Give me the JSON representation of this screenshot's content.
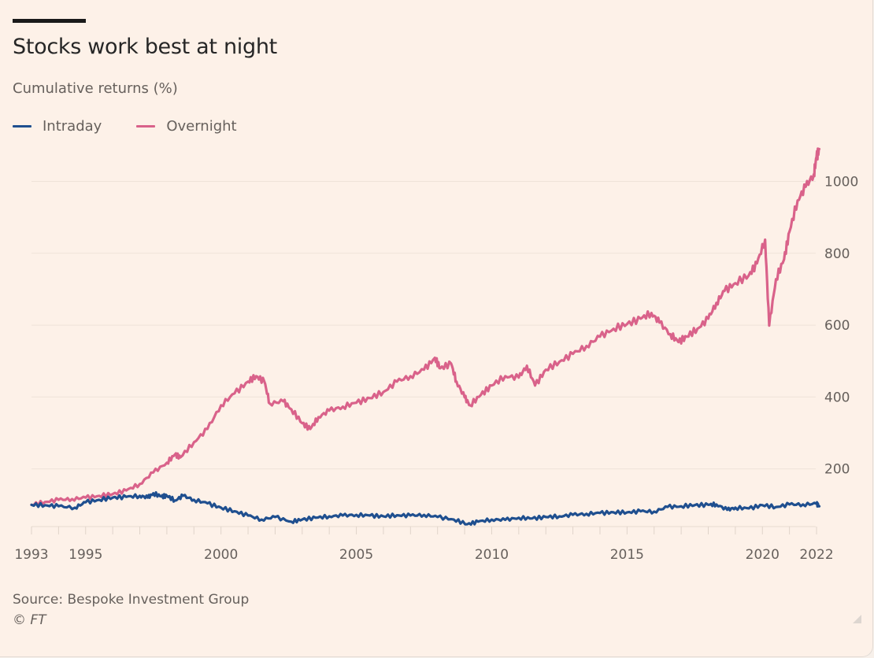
{
  "header": {
    "title": "Stocks work best at night",
    "subtitle": "Cumulative returns (%)"
  },
  "footer": {
    "source": "Source: Bespoke Investment Group",
    "copyright": "© FT"
  },
  "colors": {
    "background": "#fdf1e8",
    "intraday": "#1f4f8f",
    "overnight": "#d9628a",
    "gridline": "#efe3d9",
    "text": "#66605c"
  },
  "chart_data": {
    "type": "line",
    "title": "Stocks work best at night",
    "subtitle": "Cumulative returns (%)",
    "xlabel": "",
    "ylabel": "Cumulative returns (%)",
    "xlim": [
      1993,
      2022.1
    ],
    "ylim": [
      40,
      1100
    ],
    "x_ticks": [
      1993,
      1995,
      2000,
      2005,
      2010,
      2015,
      2020,
      2022
    ],
    "x_tick_labels": [
      "1993",
      "1995",
      "2000",
      "2005",
      "2010",
      "2015",
      "2020",
      "2022"
    ],
    "x_minor_ticks_every_year": true,
    "y_ticks": [
      200,
      400,
      600,
      800,
      1000
    ],
    "y_tick_labels": [
      "200",
      "400",
      "600",
      "800",
      "1000"
    ],
    "y_axis_side": "right",
    "grid": "horizontal",
    "legend": {
      "position": "top-left",
      "entries": [
        "Intraday",
        "Overnight"
      ]
    },
    "source": "Source: Bespoke Investment Group",
    "series": [
      {
        "name": "Intraday",
        "color": "#1f4f8f",
        "points": [
          [
            1993.0,
            100
          ],
          [
            1993.5,
            99
          ],
          [
            1994.0,
            96
          ],
          [
            1994.6,
            92
          ],
          [
            1995.0,
            107
          ],
          [
            1995.5,
            114
          ],
          [
            1996.0,
            120
          ],
          [
            1996.5,
            122
          ],
          [
            1997.0,
            125
          ],
          [
            1997.3,
            120
          ],
          [
            1997.5,
            132
          ],
          [
            1997.8,
            123
          ],
          [
            1998.0,
            125
          ],
          [
            1998.3,
            112
          ],
          [
            1998.6,
            125
          ],
          [
            1999.0,
            114
          ],
          [
            1999.5,
            104
          ],
          [
            2000.0,
            92
          ],
          [
            2000.5,
            82
          ],
          [
            2001.0,
            70
          ],
          [
            2001.5,
            59
          ],
          [
            2002.0,
            66
          ],
          [
            2002.6,
            53
          ],
          [
            2003.0,
            59
          ],
          [
            2003.5,
            64
          ],
          [
            2004.0,
            68
          ],
          [
            2004.5,
            70
          ],
          [
            2005.0,
            72
          ],
          [
            2005.5,
            70
          ],
          [
            2006.0,
            68
          ],
          [
            2006.5,
            71
          ],
          [
            2007.0,
            70
          ],
          [
            2007.5,
            72
          ],
          [
            2008.0,
            66
          ],
          [
            2008.6,
            59
          ],
          [
            2009.1,
            46
          ],
          [
            2009.5,
            53
          ],
          [
            2010.0,
            59
          ],
          [
            2010.5,
            58
          ],
          [
            2011.0,
            64
          ],
          [
            2011.5,
            62
          ],
          [
            2012.0,
            66
          ],
          [
            2012.5,
            68
          ],
          [
            2013.0,
            72
          ],
          [
            2013.5,
            75
          ],
          [
            2014.0,
            77
          ],
          [
            2014.5,
            79
          ],
          [
            2015.0,
            79
          ],
          [
            2015.5,
            82
          ],
          [
            2016.0,
            81
          ],
          [
            2016.5,
            94
          ],
          [
            2017.0,
            96
          ],
          [
            2017.5,
            99
          ],
          [
            2018.0,
            100
          ],
          [
            2018.3,
            101
          ],
          [
            2018.7,
            86
          ],
          [
            2019.0,
            92
          ],
          [
            2019.5,
            90
          ],
          [
            2020.0,
            99
          ],
          [
            2020.5,
            94
          ],
          [
            2021.0,
            101
          ],
          [
            2021.5,
            101
          ],
          [
            2022.0,
            103
          ],
          [
            2022.1,
            96
          ]
        ]
      },
      {
        "name": "Overnight",
        "color": "#d9628a",
        "points": [
          [
            1993.0,
            100
          ],
          [
            1993.5,
            108
          ],
          [
            1994.0,
            114
          ],
          [
            1994.5,
            116
          ],
          [
            1995.0,
            120
          ],
          [
            1995.5,
            125
          ],
          [
            1996.0,
            130
          ],
          [
            1996.5,
            140
          ],
          [
            1997.0,
            158
          ],
          [
            1997.5,
            190
          ],
          [
            1998.0,
            217
          ],
          [
            1998.3,
            240
          ],
          [
            1998.5,
            232
          ],
          [
            1999.0,
            274
          ],
          [
            1999.5,
            311
          ],
          [
            2000.0,
            377
          ],
          [
            2000.5,
            410
          ],
          [
            2001.0,
            443
          ],
          [
            2001.3,
            458
          ],
          [
            2001.6,
            443
          ],
          [
            2001.8,
            382
          ],
          [
            2002.3,
            388
          ],
          [
            2002.6,
            366
          ],
          [
            2003.0,
            327
          ],
          [
            2003.3,
            311
          ],
          [
            2003.6,
            344
          ],
          [
            2004.0,
            362
          ],
          [
            2004.5,
            373
          ],
          [
            2005.0,
            384
          ],
          [
            2005.5,
            397
          ],
          [
            2006.0,
            414
          ],
          [
            2006.5,
            443
          ],
          [
            2007.0,
            458
          ],
          [
            2007.5,
            476
          ],
          [
            2007.9,
            509
          ],
          [
            2008.1,
            480
          ],
          [
            2008.5,
            493
          ],
          [
            2008.7,
            443
          ],
          [
            2009.0,
            399
          ],
          [
            2009.2,
            377
          ],
          [
            2009.6,
            406
          ],
          [
            2010.0,
            432
          ],
          [
            2010.5,
            458
          ],
          [
            2011.0,
            454
          ],
          [
            2011.3,
            487
          ],
          [
            2011.6,
            432
          ],
          [
            2012.0,
            476
          ],
          [
            2012.5,
            498
          ],
          [
            2013.0,
            520
          ],
          [
            2013.5,
            542
          ],
          [
            2014.0,
            568
          ],
          [
            2014.5,
            590
          ],
          [
            2015.0,
            603
          ],
          [
            2015.5,
            618
          ],
          [
            2015.9,
            634
          ],
          [
            2016.2,
            607
          ],
          [
            2016.6,
            575
          ],
          [
            2016.9,
            553
          ],
          [
            2017.2,
            568
          ],
          [
            2017.6,
            590
          ],
          [
            2018.0,
            618
          ],
          [
            2018.3,
            662
          ],
          [
            2018.6,
            695
          ],
          [
            2019.0,
            717
          ],
          [
            2019.5,
            739
          ],
          [
            2019.8,
            772
          ],
          [
            2020.1,
            838
          ],
          [
            2020.25,
            599
          ],
          [
            2020.5,
            728
          ],
          [
            2020.8,
            783
          ],
          [
            2021.0,
            860
          ],
          [
            2021.3,
            947
          ],
          [
            2021.6,
            985
          ],
          [
            2021.9,
            1020
          ],
          [
            2022.0,
            1068
          ],
          [
            2022.1,
            1090
          ]
        ]
      }
    ]
  }
}
